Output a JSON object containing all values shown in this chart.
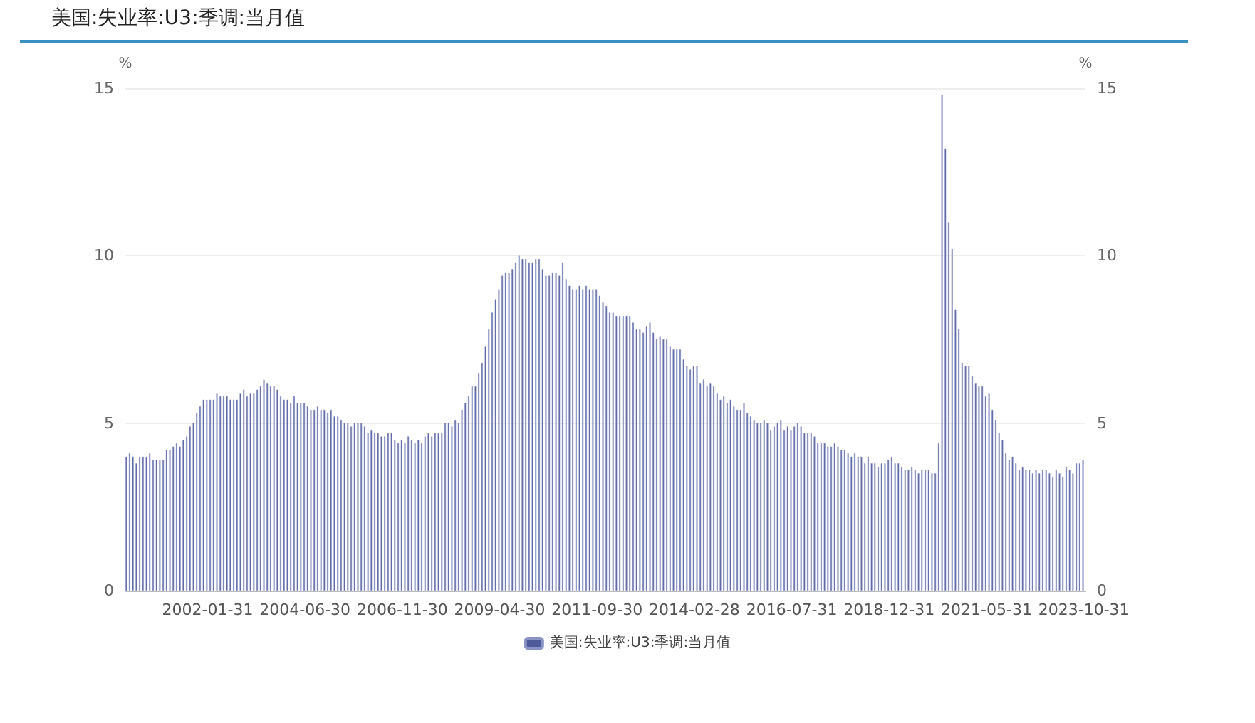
{
  "chart_data": {
    "type": "bar",
    "title": "美国:失业率:U3:季调:当月值",
    "ylabel": "%",
    "y2label": "%",
    "categories": [
      null,
      null,
      null,
      null,
      null,
      null,
      null,
      null,
      null,
      null,
      null,
      null,
      null,
      null,
      null,
      null,
      null,
      null,
      null,
      null,
      null,
      null,
      null,
      null,
      "2002-01-31",
      null,
      null,
      null,
      null,
      null,
      null,
      null,
      null,
      null,
      null,
      null,
      null,
      null,
      null,
      null,
      null,
      null,
      null,
      null,
      null,
      null,
      null,
      null,
      null,
      null,
      null,
      null,
      null,
      "2004-06-30",
      null,
      null,
      null,
      null,
      null,
      null,
      null,
      null,
      null,
      null,
      null,
      null,
      null,
      null,
      null,
      null,
      null,
      null,
      null,
      null,
      null,
      null,
      null,
      null,
      null,
      null,
      null,
      null,
      "2006-11-30",
      null,
      null,
      null,
      null,
      null,
      null,
      null,
      null,
      null,
      null,
      null,
      null,
      null,
      null,
      null,
      null,
      null,
      null,
      null,
      null,
      null,
      null,
      null,
      null,
      null,
      null,
      null,
      null,
      "2009-04-30",
      null,
      null,
      null,
      null,
      null,
      null,
      null,
      null,
      null,
      null,
      null,
      null,
      null,
      null,
      null,
      null,
      null,
      null,
      null,
      null,
      null,
      null,
      null,
      null,
      null,
      null,
      null,
      null,
      "2011-09-30",
      null,
      null,
      null,
      null,
      null,
      null,
      null,
      null,
      null,
      null,
      null,
      null,
      null,
      null,
      null,
      null,
      null,
      null,
      null,
      null,
      null,
      null,
      null,
      null,
      null,
      null,
      null,
      null,
      "2014-02-28",
      null,
      null,
      null,
      null,
      null,
      null,
      null,
      null,
      null,
      null,
      null,
      null,
      null,
      null,
      null,
      null,
      null,
      null,
      null,
      null,
      null,
      null,
      null,
      null,
      null,
      null,
      null,
      null,
      "2016-07-31",
      null,
      null,
      null,
      null,
      null,
      null,
      null,
      null,
      null,
      null,
      null,
      null,
      null,
      null,
      null,
      null,
      null,
      null,
      null,
      null,
      null,
      null,
      null,
      null,
      null,
      null,
      null,
      null,
      "2018-12-31",
      null,
      null,
      null,
      null,
      null,
      null,
      null,
      null,
      null,
      null,
      null,
      null,
      null,
      null,
      null,
      null,
      null,
      null,
      null,
      null,
      null,
      null,
      null,
      null,
      null,
      null,
      null,
      null,
      "2021-05-31",
      null,
      null,
      null,
      null,
      null,
      null,
      null,
      null,
      null,
      null,
      null,
      null,
      null,
      null,
      null,
      null,
      null,
      null,
      null,
      null,
      null,
      null,
      null,
      null,
      null,
      null,
      null,
      null,
      "2023-10-31"
    ],
    "series": [
      {
        "name": "美国:失业率:U3:季调:当月值",
        "color": "#4e5a9a",
        "values": [
          4.0,
          4.1,
          4.0,
          3.8,
          4.0,
          4.0,
          4.0,
          4.1,
          3.9,
          3.9,
          3.9,
          3.9,
          4.2,
          4.2,
          4.3,
          4.4,
          4.3,
          4.5,
          4.6,
          4.9,
          5.0,
          5.3,
          5.5,
          5.7,
          5.7,
          5.7,
          5.7,
          5.9,
          5.8,
          5.8,
          5.8,
          5.7,
          5.7,
          5.7,
          5.9,
          6.0,
          5.8,
          5.9,
          5.9,
          6.0,
          6.1,
          6.3,
          6.2,
          6.1,
          6.1,
          6.0,
          5.8,
          5.7,
          5.7,
          5.6,
          5.8,
          5.6,
          5.6,
          5.6,
          5.5,
          5.4,
          5.4,
          5.5,
          5.4,
          5.4,
          5.3,
          5.4,
          5.2,
          5.2,
          5.1,
          5.0,
          5.0,
          4.9,
          5.0,
          5.0,
          5.0,
          4.9,
          4.7,
          4.8,
          4.7,
          4.7,
          4.6,
          4.6,
          4.7,
          4.7,
          4.5,
          4.4,
          4.5,
          4.4,
          4.6,
          4.5,
          4.4,
          4.5,
          4.4,
          4.6,
          4.7,
          4.6,
          4.7,
          4.7,
          4.7,
          5.0,
          5.0,
          4.9,
          5.1,
          5.0,
          5.4,
          5.6,
          5.8,
          6.1,
          6.1,
          6.5,
          6.8,
          7.3,
          7.8,
          8.3,
          8.7,
          9.0,
          9.4,
          9.5,
          9.5,
          9.6,
          9.8,
          10.0,
          9.9,
          9.9,
          9.8,
          9.8,
          9.9,
          9.9,
          9.6,
          9.4,
          9.4,
          9.5,
          9.5,
          9.4,
          9.8,
          9.3,
          9.1,
          9.0,
          9.0,
          9.1,
          9.0,
          9.1,
          9.0,
          9.0,
          9.0,
          8.8,
          8.6,
          8.5,
          8.3,
          8.3,
          8.2,
          8.2,
          8.2,
          8.2,
          8.2,
          8.0,
          7.8,
          7.8,
          7.7,
          7.9,
          8.0,
          7.7,
          7.5,
          7.6,
          7.5,
          7.5,
          7.3,
          7.2,
          7.2,
          7.2,
          6.9,
          6.7,
          6.6,
          6.7,
          6.7,
          6.2,
          6.3,
          6.1,
          6.2,
          6.1,
          5.9,
          5.7,
          5.8,
          5.6,
          5.7,
          5.5,
          5.4,
          5.4,
          5.6,
          5.3,
          5.2,
          5.1,
          5.0,
          5.0,
          5.1,
          5.0,
          4.8,
          4.9,
          5.0,
          5.1,
          4.8,
          4.9,
          4.8,
          4.9,
          5.0,
          4.9,
          4.7,
          4.7,
          4.7,
          4.6,
          4.4,
          4.4,
          4.4,
          4.3,
          4.3,
          4.4,
          4.3,
          4.2,
          4.2,
          4.1,
          4.0,
          4.1,
          4.0,
          4.0,
          3.8,
          4.0,
          3.8,
          3.8,
          3.7,
          3.8,
          3.8,
          3.9,
          4.0,
          3.8,
          3.8,
          3.7,
          3.6,
          3.6,
          3.7,
          3.6,
          3.5,
          3.6,
          3.6,
          3.6,
          3.5,
          3.5,
          4.4,
          14.8,
          13.2,
          11.0,
          10.2,
          8.4,
          7.8,
          6.8,
          6.7,
          6.7,
          6.4,
          6.2,
          6.1,
          6.1,
          5.8,
          5.9,
          5.4,
          5.1,
          4.7,
          4.5,
          4.1,
          3.9,
          4.0,
          3.8,
          3.6,
          3.7,
          3.6,
          3.6,
          3.5,
          3.6,
          3.5,
          3.6,
          3.6,
          3.5,
          3.4,
          3.6,
          3.5,
          3.4,
          3.7,
          3.6,
          3.5,
          3.8,
          3.8,
          3.9
        ]
      }
    ],
    "ylim": [
      0,
      15
    ],
    "yticks": [
      0,
      5,
      10,
      15
    ],
    "y2lim": [
      0,
      15
    ],
    "y2ticks": [
      0,
      5,
      10,
      15
    ],
    "grid": "y",
    "legend": "bottom"
  }
}
